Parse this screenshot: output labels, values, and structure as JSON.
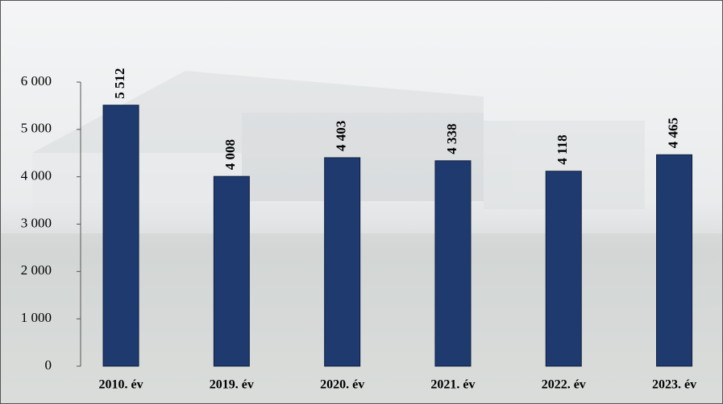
{
  "chart_data": {
    "type": "bar",
    "categories": [
      "2010. év",
      "2019. év",
      "2020. év",
      "2021. év",
      "2022. év",
      "2023. év"
    ],
    "values": [
      5512,
      4008,
      4403,
      4338,
      4118,
      4465
    ],
    "value_labels": [
      "5 512",
      "4 008",
      "4 403",
      "4 338",
      "4 118",
      "4 465"
    ],
    "color": "#1f3a6e",
    "ylim": [
      0,
      6000
    ],
    "yticks": [
      0,
      {
        "value": 1000,
        "label": "1 000"
      },
      {
        "value": 2000,
        "label": "2 000"
      },
      {
        "value": 3000,
        "label": "3 000"
      },
      {
        "value": 4000,
        "label": "4 000"
      },
      {
        "value": 5000,
        "label": "5 000"
      },
      {
        "value": 6000,
        "label": "6 000"
      }
    ],
    "grid": false
  }
}
